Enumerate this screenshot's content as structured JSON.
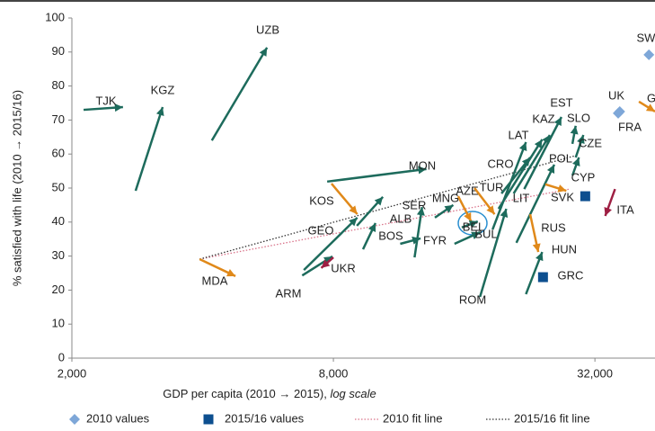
{
  "chart_data": {
    "type": "arrow-scatter",
    "ylabel": "% satisfied with life (2010 → 2015/16)",
    "xlabel": "GDP per capita (2010 → 2015), ",
    "xlabel_italic": "log scale",
    "xlog": true,
    "xlim": [
      2000,
      44000
    ],
    "xticks": [
      {
        "value": 2000,
        "label": "2,000"
      },
      {
        "value": 8000,
        "label": "8,000"
      },
      {
        "value": 32000,
        "label": "32,000"
      }
    ],
    "ylim": [
      0,
      100
    ],
    "yticks": [
      0,
      10,
      20,
      30,
      40,
      50,
      60,
      70,
      80,
      90,
      100
    ],
    "marker_2010_color": "#7ea7d8",
    "marker_2015_color": "#0d4f8f",
    "countries": [
      {
        "name": "TJK",
        "x": [
          2128,
          2622
        ],
        "y": [
          73.0,
          73.8
        ],
        "color": "#1d6b5c"
      },
      {
        "name": "KGZ",
        "x": [
          2804,
          3236
        ],
        "y": [
          49.2,
          73.8
        ],
        "color": "#1d6b5c"
      },
      {
        "name": "UZB",
        "x": [
          4200,
          5627
        ],
        "y": [
          64.0,
          91.3
        ],
        "color": "#1d6b5c"
      },
      {
        "name": "MDA",
        "x": [
          3936,
          4760
        ],
        "y": [
          29.1,
          24.1
        ],
        "color": "#e0891a"
      },
      {
        "name": "ARM",
        "x": [
          6780,
          7960
        ],
        "y": [
          24.3,
          29.9
        ],
        "color": "#1d6b5c"
      },
      {
        "name": "UKR",
        "x": [
          8000,
          7500
        ],
        "y": [
          29.6,
          26.5
        ],
        "color": "#9e1f43"
      },
      {
        "name": "GEO",
        "x": [
          6840,
          9080
        ],
        "y": [
          25.9,
          41.3
        ],
        "color": "#1d6b5c"
      },
      {
        "name": "KOS",
        "x": [
          7920,
          9080
        ],
        "y": [
          51.3,
          42.3
        ],
        "color": "#e0891a"
      },
      {
        "name": "ALB",
        "x": [
          9060,
          10400
        ],
        "y": [
          38.9,
          47.4
        ],
        "color": "#1d6b5c"
      },
      {
        "name": "BOS",
        "x": [
          9360,
          10000
        ],
        "y": [
          32.0,
          39.7
        ],
        "color": "#1d6b5c"
      },
      {
        "name": "MON",
        "x": [
          7740,
          13100
        ],
        "y": [
          51.9,
          55.6
        ],
        "color": "#1d6b5c"
      },
      {
        "name": "SER",
        "x": [
          12300,
          12800
        ],
        "y": [
          29.6,
          44.4
        ],
        "color": "#1d6b5c"
      },
      {
        "name": "FYR",
        "x": [
          11400,
          12700
        ],
        "y": [
          33.6,
          35.2
        ],
        "color": "#1d6b5c"
      },
      {
        "name": "MNG",
        "x": [
          13700,
          15100
        ],
        "y": [
          41.3,
          45.0
        ],
        "color": "#1d6b5c"
      },
      {
        "name": "AZE",
        "x": [
          15500,
          16600
        ],
        "y": [
          47.6,
          40.2
        ],
        "color": "#e0891a"
      },
      {
        "name": "TUR",
        "x": [
          16900,
          18800
        ],
        "y": [
          50.0,
          42.3
        ],
        "color": "#e0891a"
      },
      {
        "name": "BEL",
        "x": [
          15800,
          17200
        ],
        "y": [
          38.4,
          40.2
        ],
        "color": "#1d6b5c"
      },
      {
        "name": "BUL",
        "x": [
          15200,
          17400
        ],
        "y": [
          33.6,
          37.0
        ],
        "color": "#1d6b5c"
      },
      {
        "name": "ROM",
        "x": [
          17400,
          20000
        ],
        "y": [
          18.0,
          43.9
        ],
        "color": "#1d6b5c"
      },
      {
        "name": "LIT",
        "x": [
          18600,
          22200
        ],
        "y": [
          37.8,
          63.5
        ],
        "color": "#1d6b5c"
      },
      {
        "name": "LAT",
        "x": [
          19200,
          24200
        ],
        "y": [
          43.9,
          64.3
        ],
        "color": "#1d6b5c"
      },
      {
        "name": "CRO",
        "x": [
          19500,
          22700
        ],
        "y": [
          48.4,
          59.0
        ],
        "color": "#1d6b5c"
      },
      {
        "name": "EST",
        "x": [
          22000,
          26800
        ],
        "y": [
          49.7,
          70.9
        ],
        "color": "#1d6b5c"
      },
      {
        "name": "KAZ",
        "x": [
          20800,
          25200
        ],
        "y": [
          48.4,
          65.6
        ],
        "color": "#1d6b5c"
      },
      {
        "name": "SLO",
        "x": [
          28400,
          28900
        ],
        "y": [
          63.0,
          68.3
        ],
        "color": "#1d6b5c"
      },
      {
        "name": "POL",
        "x": [
          21100,
          25800
        ],
        "y": [
          33.9,
          56.9
        ],
        "color": "#1d6b5c"
      },
      {
        "name": "CZE",
        "x": [
          28900,
          30100
        ],
        "y": [
          59.0,
          65.6
        ],
        "color": "#1d6b5c"
      },
      {
        "name": "CYP",
        "x": [
          28400,
          29400
        ],
        "y": [
          53.7,
          59.0
        ],
        "color": "#1d6b5c"
      },
      {
        "name": "SVK",
        "x": [
          24600,
          27500
        ],
        "y": [
          51.1,
          49.2
        ],
        "color": "#e0891a"
      },
      {
        "name": "RUS",
        "x": [
          22700,
          23700
        ],
        "y": [
          42.3,
          31.2
        ],
        "color": "#e0891a"
      },
      {
        "name": "HUN",
        "x": [
          22200,
          24200
        ],
        "y": [
          18.8,
          31.2
        ],
        "color": "#1d6b5c"
      },
      {
        "name": "GRC",
        "x": [
          null,
          24300
        ],
        "y": [
          null,
          23.8
        ],
        "color": "#1d6b5c"
      },
      {
        "name": "ITA",
        "x": [
          35600,
          33800
        ],
        "y": [
          49.7,
          41.8
        ],
        "color": "#9e1f43"
      },
      {
        "name": "UK",
        "x": [
          36500,
          null
        ],
        "y": [
          72.5,
          null
        ],
        "color": "#1d6b5c"
      },
      {
        "name": "FRA",
        "x": [
          36200,
          null
        ],
        "y": [
          72.0,
          null
        ],
        "color": "#1d6b5c"
      },
      {
        "name": "SW",
        "x": [
          42600,
          null
        ],
        "y": [
          89.2,
          null
        ],
        "color": "#1d6b5c"
      },
      {
        "name": "G",
        "x": [
          40400,
          44000
        ],
        "y": [
          75.4,
          72.5
        ],
        "color": "#e0891a"
      },
      {
        "name": null,
        "x": [
          null,
          30400
        ],
        "y": [
          null,
          47.6
        ],
        "color": "#1d6b5c"
      }
    ],
    "fit_lines": [
      {
        "name": "2010 fit line",
        "color": "#d9738a",
        "x": [
          3936,
          28000
        ],
        "y": [
          29.1,
          49.7
        ]
      },
      {
        "name": "2015/16 fit line",
        "color": "#333333",
        "x": [
          3936,
          28800
        ],
        "y": [
          29.1,
          59.5
        ]
      }
    ],
    "legend": [
      "2010 values",
      "2015/16 values"
    ]
  }
}
